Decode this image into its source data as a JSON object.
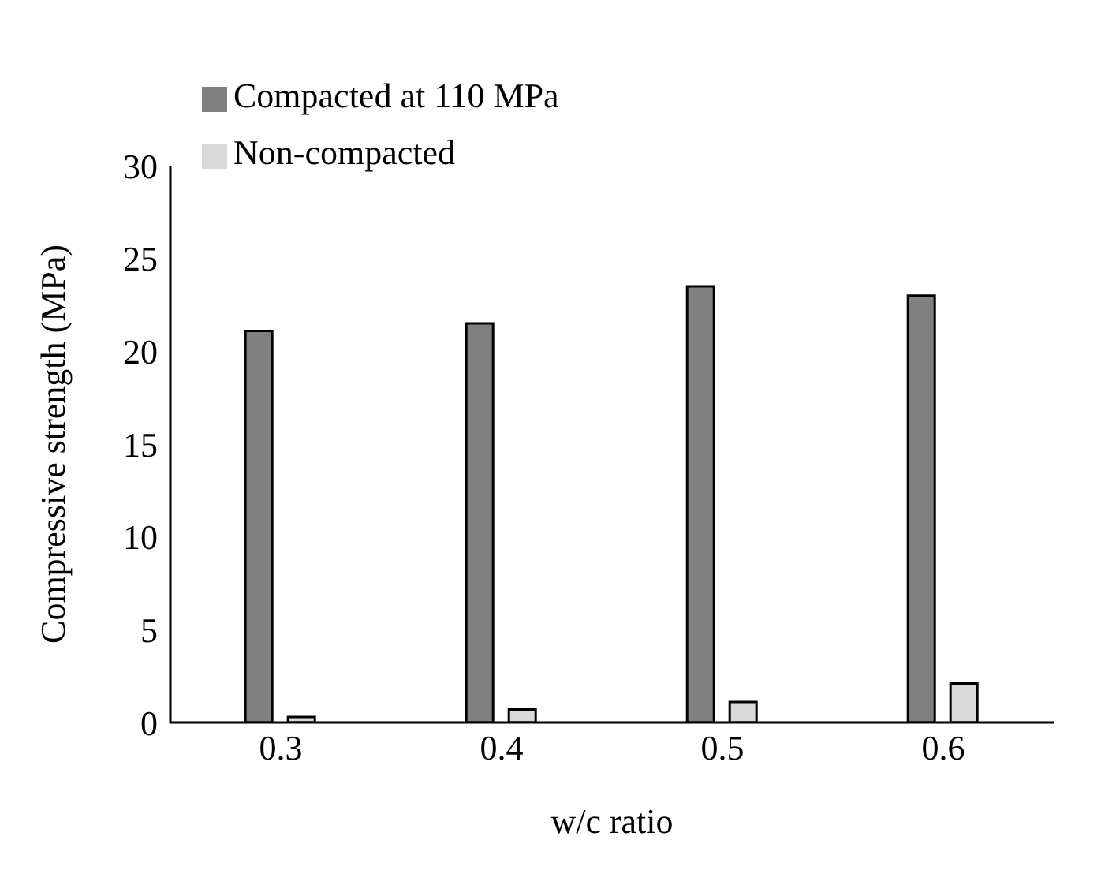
{
  "chart_data": {
    "type": "bar",
    "categories": [
      "0.3",
      "0.4",
      "0.5",
      "0.6"
    ],
    "xlabel": "w/c ratio",
    "ylabel": "Compressive strength (MPa)",
    "series": [
      {
        "name": "Compacted at 110 MPa",
        "color": "#808080",
        "values": [
          21.1,
          21.5,
          23.5,
          23.0
        ]
      },
      {
        "name": "Non-compacted",
        "color": "#d9d9d9",
        "values": [
          0.3,
          0.7,
          1.1,
          2.1
        ]
      }
    ],
    "ylim": [
      0,
      30
    ],
    "yticks": [
      0,
      5,
      10,
      15,
      20,
      25,
      30
    ],
    "grid": false,
    "legend": "top left"
  }
}
